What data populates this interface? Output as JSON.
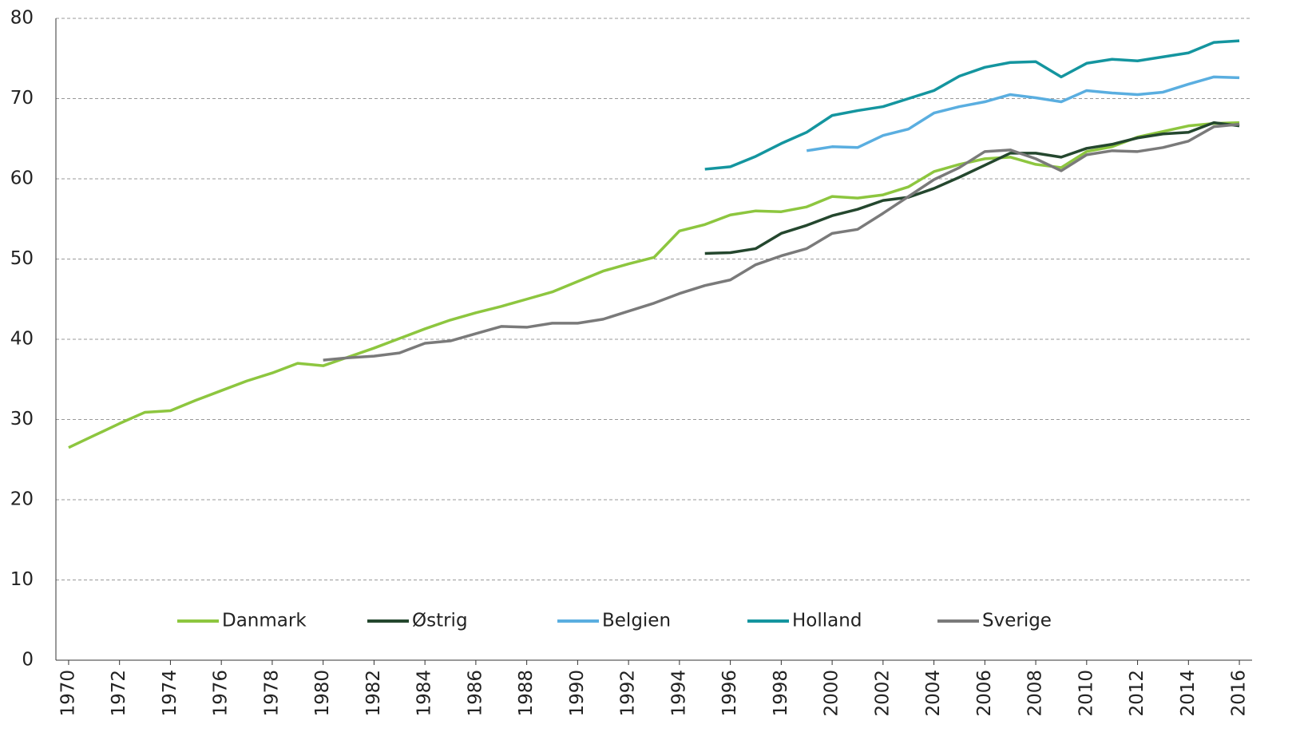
{
  "chart_data": {
    "type": "line",
    "x": [
      1970,
      1971,
      1972,
      1973,
      1974,
      1975,
      1976,
      1977,
      1978,
      1979,
      1980,
      1981,
      1982,
      1983,
      1984,
      1985,
      1986,
      1987,
      1988,
      1989,
      1990,
      1991,
      1992,
      1993,
      1994,
      1995,
      1996,
      1997,
      1998,
      1999,
      2000,
      2001,
      2002,
      2003,
      2004,
      2005,
      2006,
      2007,
      2008,
      2009,
      2010,
      2011,
      2012,
      2013,
      2014,
      2015,
      2016
    ],
    "series": [
      {
        "name": "Danmark",
        "color": "#8dc63f",
        "values": [
          26.5,
          28.0,
          29.5,
          30.9,
          31.1,
          32.4,
          33.6,
          34.8,
          35.8,
          37.0,
          36.7,
          37.8,
          38.9,
          40.1,
          41.3,
          42.4,
          43.3,
          44.1,
          45.0,
          45.9,
          47.2,
          48.5,
          49.4,
          50.2,
          53.5,
          54.3,
          55.5,
          56.0,
          55.9,
          56.5,
          57.8,
          57.6,
          58.0,
          59.0,
          60.9,
          61.8,
          62.5,
          62.7,
          61.8,
          61.4,
          63.4,
          64.0,
          65.2,
          65.9,
          66.6,
          66.9,
          67.0
        ]
      },
      {
        "name": "Østrig",
        "color": "#24472e",
        "values": [
          null,
          null,
          null,
          null,
          null,
          null,
          null,
          null,
          null,
          null,
          null,
          null,
          null,
          null,
          null,
          null,
          null,
          null,
          null,
          null,
          null,
          null,
          null,
          null,
          null,
          50.7,
          50.8,
          51.3,
          53.2,
          54.2,
          55.4,
          56.2,
          57.3,
          57.7,
          58.8,
          60.2,
          61.7,
          63.2,
          63.2,
          62.7,
          63.8,
          64.3,
          65.1,
          65.6,
          65.8,
          67.0,
          66.6
        ]
      },
      {
        "name": "Belgien",
        "color": "#5aaee0",
        "values": [
          null,
          null,
          null,
          null,
          null,
          null,
          null,
          null,
          null,
          null,
          null,
          null,
          null,
          null,
          null,
          null,
          null,
          null,
          null,
          null,
          null,
          null,
          null,
          null,
          null,
          null,
          null,
          null,
          null,
          63.5,
          64.0,
          63.9,
          65.4,
          66.2,
          68.2,
          69.0,
          69.6,
          70.5,
          70.1,
          69.6,
          71.0,
          70.7,
          70.5,
          70.8,
          71.8,
          72.7,
          72.6
        ]
      },
      {
        "name": "Holland",
        "color": "#14959f",
        "values": [
          null,
          null,
          null,
          null,
          null,
          null,
          null,
          null,
          null,
          null,
          null,
          null,
          null,
          null,
          null,
          null,
          null,
          null,
          null,
          null,
          null,
          null,
          null,
          null,
          null,
          61.2,
          61.5,
          62.8,
          64.4,
          65.8,
          67.9,
          68.5,
          69.0,
          70.0,
          71.0,
          72.8,
          73.9,
          74.5,
          74.6,
          72.7,
          74.4,
          74.9,
          74.7,
          75.2,
          75.7,
          77.0,
          77.2
        ]
      },
      {
        "name": "Sverige",
        "color": "#7a7a7a",
        "values": [
          null,
          null,
          null,
          null,
          null,
          null,
          null,
          null,
          null,
          null,
          37.4,
          37.7,
          37.9,
          38.3,
          39.5,
          39.8,
          40.7,
          41.6,
          41.5,
          42.0,
          42.0,
          42.5,
          43.5,
          44.5,
          45.7,
          46.7,
          47.4,
          49.3,
          50.4,
          51.3,
          53.2,
          53.7,
          55.7,
          57.8,
          59.9,
          61.4,
          63.4,
          63.6,
          62.5,
          61.0,
          63.0,
          63.5,
          63.4,
          63.9,
          64.7,
          66.5,
          66.8
        ]
      }
    ],
    "xlim": [
      1969.5,
      2016.5
    ],
    "xticks": [
      1970,
      1972,
      1974,
      1976,
      1978,
      1980,
      1982,
      1984,
      1986,
      1988,
      1990,
      1992,
      1994,
      1996,
      1998,
      2000,
      2002,
      2004,
      2006,
      2008,
      2010,
      2012,
      2014,
      2016
    ],
    "ylim": [
      0,
      80
    ],
    "yticks": [
      0,
      10,
      20,
      30,
      40,
      50,
      60,
      70,
      80
    ],
    "grid": true,
    "legend": "bottom"
  }
}
